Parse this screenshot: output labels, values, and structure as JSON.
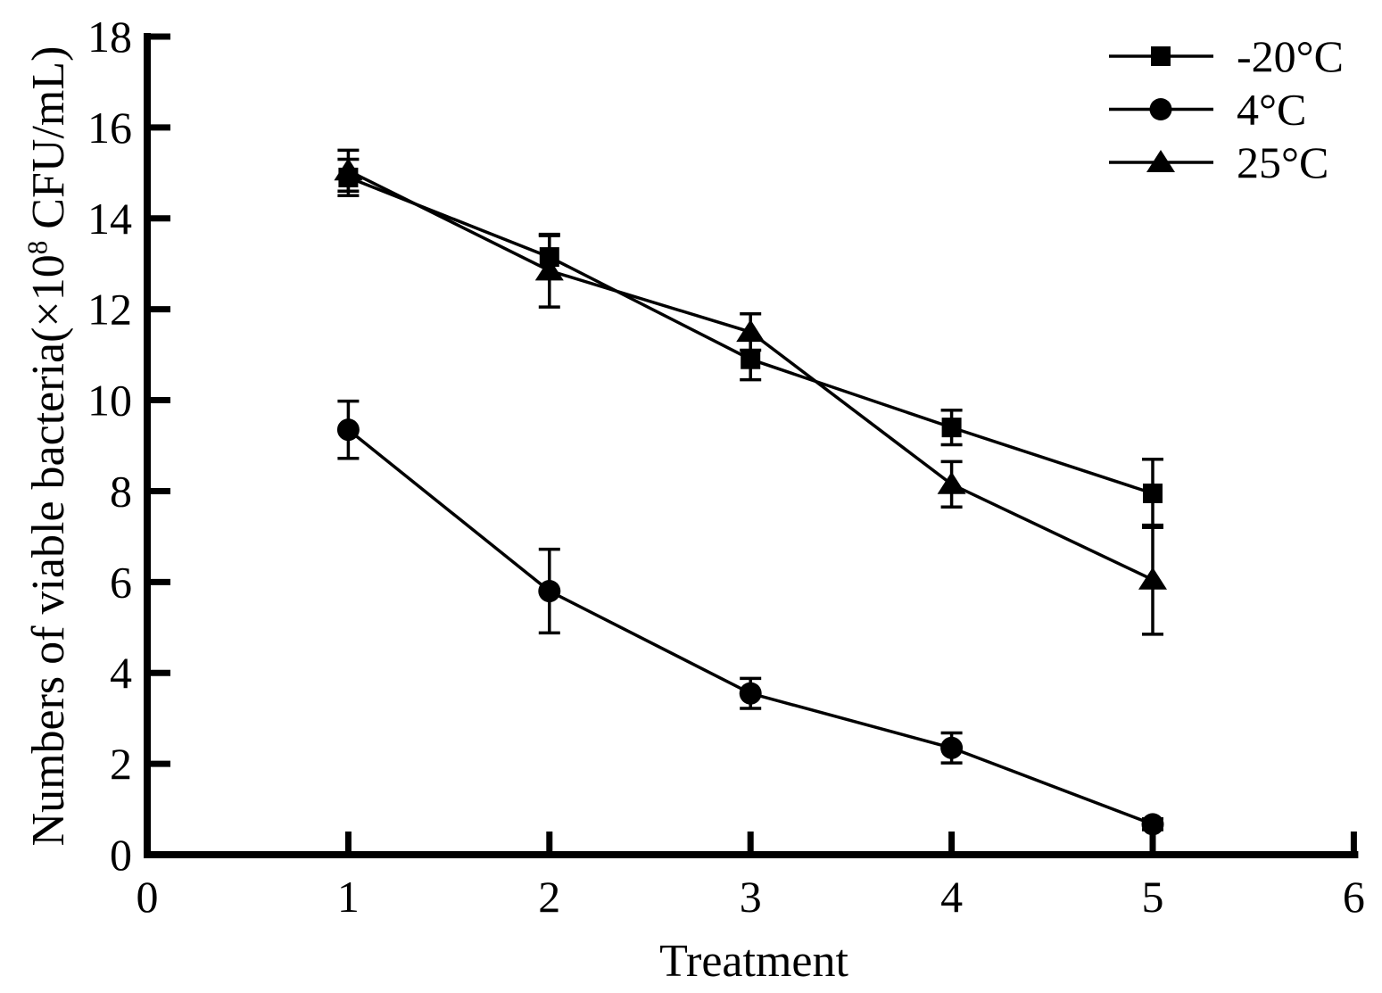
{
  "figure": {
    "background": "#ffffff",
    "ink": "#000000"
  },
  "chart_data": {
    "type": "line",
    "x": [
      1,
      2,
      3,
      4,
      5
    ],
    "series": [
      {
        "name": "-20°C",
        "marker": "square",
        "values": [
          14.9,
          13.15,
          10.9,
          9.4,
          7.95
        ],
        "errors": [
          0.4,
          0.47,
          0.45,
          0.38,
          0.75
        ]
      },
      {
        "name": "4°C",
        "marker": "circle",
        "values": [
          9.35,
          5.8,
          3.55,
          2.35,
          0.67
        ],
        "errors": [
          0.63,
          0.92,
          0.33,
          0.33,
          0.12
        ]
      },
      {
        "name": "25°C",
        "marker": "triangle",
        "values": [
          15.05,
          12.85,
          11.5,
          8.15,
          6.05
        ],
        "errors": [
          0.45,
          0.8,
          0.4,
          0.5,
          1.2
        ]
      }
    ],
    "title": "",
    "xlabel": "Treatment",
    "ylabel": "Numbers of viable bacteria(×10⁸ CFU/mL)",
    "ylabel_parts": {
      "prefix": "Numbers of viable bacteria(×10",
      "sup": "8",
      "suffix": " CFU/mL)"
    },
    "xlim": [
      0,
      6
    ],
    "ylim": [
      0,
      18
    ],
    "xticks": [
      0,
      1,
      2,
      3,
      4,
      5,
      6
    ],
    "yticks": [
      0,
      2,
      4,
      6,
      8,
      10,
      12,
      14,
      16,
      18
    ],
    "grid": false,
    "error_bars": true,
    "legend_position": "top-right"
  }
}
